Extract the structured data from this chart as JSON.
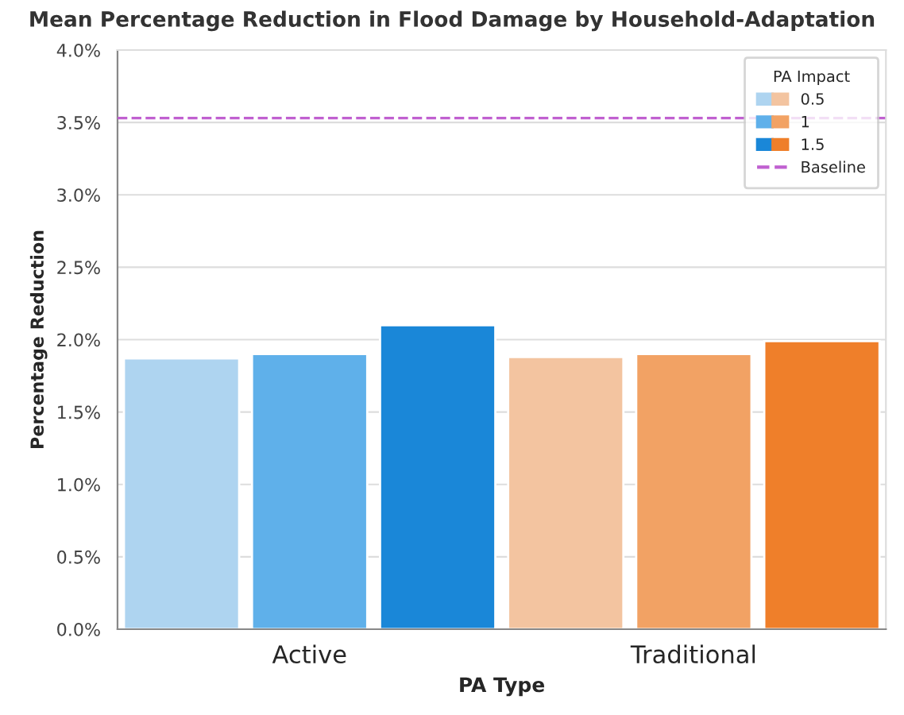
{
  "chart_data": {
    "type": "bar",
    "title": "Mean Percentage Reduction in Flood Damage by Household-Adaptation",
    "xlabel": "PA Type",
    "ylabel": "Percentage Reduction",
    "legend_title": "PA Impact",
    "categories": [
      "Active",
      "Traditional"
    ],
    "series": [
      {
        "name": "0.5",
        "colors": [
          "#aed4f0",
          "#f3c4a0"
        ],
        "values": [
          1.87,
          1.88
        ]
      },
      {
        "name": "1",
        "colors": [
          "#5fb0ea",
          "#f2a264"
        ],
        "values": [
          1.9,
          1.9
        ]
      },
      {
        "name": "1.5",
        "colors": [
          "#1a87d8",
          "#ef7f2a"
        ],
        "values": [
          2.1,
          1.99
        ]
      }
    ],
    "ylim": [
      0,
      4
    ],
    "yticks": [
      {
        "value": 0,
        "label": "0.0%"
      },
      {
        "value": 0.5,
        "label": "0.5%"
      },
      {
        "value": 1,
        "label": "1.0%"
      },
      {
        "value": 1.5,
        "label": "1.5%"
      },
      {
        "value": 2,
        "label": "2.0%"
      },
      {
        "value": 2.5,
        "label": "2.5%"
      },
      {
        "value": 3,
        "label": "3.0%"
      },
      {
        "value": 3.5,
        "label": "3.5%"
      },
      {
        "value": 4,
        "label": "4.0%"
      }
    ],
    "ref_lines": [
      {
        "axis": "y",
        "value": 3.53,
        "label": "Baseline",
        "color": "#c060d0",
        "line_style": "dashed"
      }
    ],
    "grid": "y",
    "legend": "top right"
  }
}
